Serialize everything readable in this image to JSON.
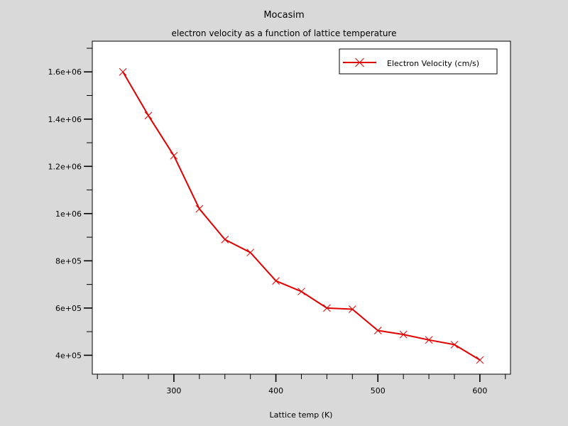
{
  "chart_data": {
    "type": "line",
    "title": "Mocasim",
    "subtitle": "electron velocity as a function of lattice temperature",
    "xlabel": "Lattice temp (K)",
    "ylabel": "",
    "xlim": [
      220,
      630
    ],
    "ylim": [
      320000,
      1730000
    ],
    "xticks": [
      300,
      400,
      500,
      600
    ],
    "xtick_labels": [
      "300",
      "400",
      "500",
      "600"
    ],
    "yticks": [
      400000,
      600000,
      800000,
      1000000,
      1200000,
      1400000,
      1600000
    ],
    "ytick_labels": [
      "4e+05",
      "6e+05",
      "8e+05",
      "1e+06",
      "1.2e+06",
      "1.4e+06",
      "1.6e+06"
    ],
    "grid": false,
    "legend_position": "top-right",
    "series": [
      {
        "name": "Electron Velocity (cm/s)",
        "color": "#e00000",
        "marker": "x",
        "x": [
          250,
          275,
          300,
          325,
          350,
          375,
          400,
          425,
          450,
          475,
          500,
          525,
          550,
          575,
          600
        ],
        "y": [
          1600000,
          1415000,
          1245000,
          1020000,
          890000,
          835000,
          715000,
          670000,
          600000,
          595000,
          505000,
          488000,
          465000,
          445000,
          380000
        ]
      }
    ]
  }
}
